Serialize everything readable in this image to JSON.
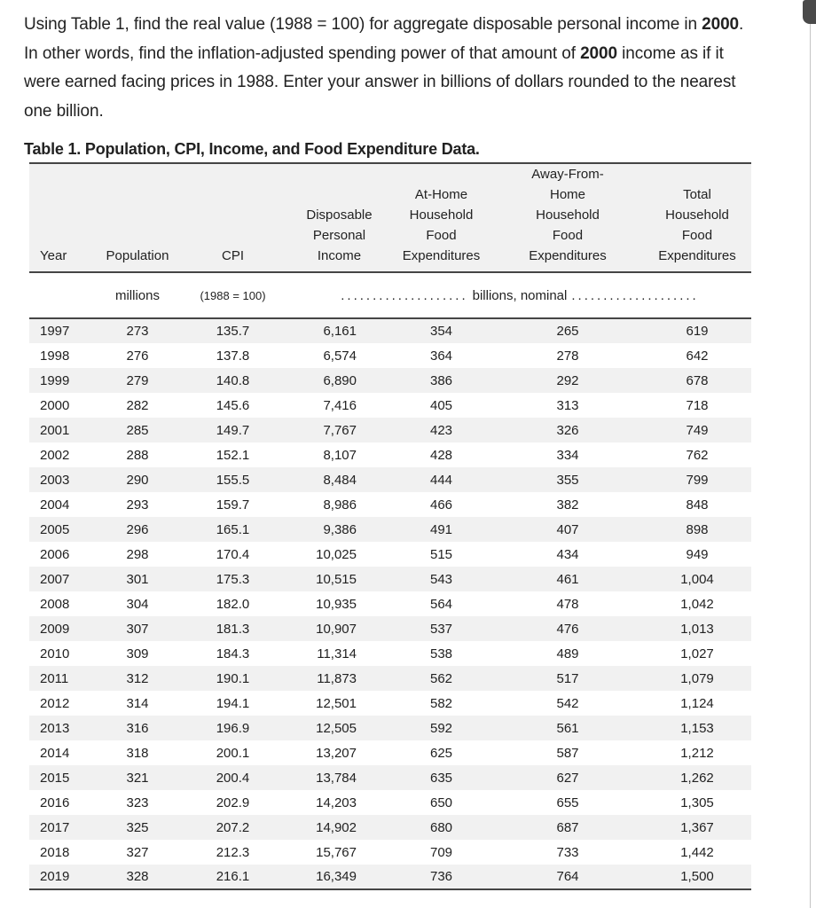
{
  "colors": {
    "stripe": "#f1f1f1",
    "rule": "#454545",
    "text": "#222222",
    "scrollbar_thumb": "#4a4a4a",
    "scrollbar_track_line": "#c5c5c5"
  },
  "question": {
    "lines": [
      [
        {
          "t": "Using Table 1, find the real value (1988 = 100) for aggregate disposable personal income in ",
          "b": false
        },
        {
          "t": "2000",
          "b": true
        },
        {
          "t": ".",
          "b": false
        }
      ],
      [
        {
          "t": "In other words, find the inflation-adjusted spending power of that amount of ",
          "b": false
        },
        {
          "t": "2000",
          "b": true
        },
        {
          "t": " income as if it",
          "b": false
        }
      ],
      [
        {
          "t": "were earned facing prices in 1988. Enter your answer in billions of dollars rounded to the nearest",
          "b": false
        }
      ],
      [
        {
          "t": "one billion.",
          "b": false
        }
      ]
    ]
  },
  "table": {
    "title": "Table 1. Population, CPI, Income, and Food Expenditure Data.",
    "columns": [
      {
        "key": "year",
        "label_lines": [
          "Year"
        ],
        "align": "left"
      },
      {
        "key": "population",
        "label_lines": [
          "Population"
        ],
        "align": "center"
      },
      {
        "key": "cpi",
        "label_lines": [
          "CPI"
        ],
        "align": "center"
      },
      {
        "key": "income",
        "label_lines": [
          "Disposable",
          "Personal",
          "Income"
        ],
        "align": "right"
      },
      {
        "key": "athome",
        "label_lines": [
          "At-Home",
          "Household",
          "Food",
          "Expenditures"
        ],
        "align": "center"
      },
      {
        "key": "away",
        "label_lines": [
          "Away-From-",
          "Home",
          "Household",
          "Food",
          "Expenditures"
        ],
        "align": "center"
      },
      {
        "key": "total",
        "label_lines": [
          "Total",
          "Household",
          "Food",
          "Expenditures"
        ],
        "align": "center"
      }
    ],
    "units": {
      "population": "millions",
      "cpi": "(1988 = 100)",
      "span_left_dots": "....................",
      "span_label": "billions, nominal",
      "span_right_dots": "...................."
    },
    "rows": [
      [
        "1997",
        "273",
        "135.7",
        "6,161",
        "354",
        "265",
        "619"
      ],
      [
        "1998",
        "276",
        "137.8",
        "6,574",
        "364",
        "278",
        "642"
      ],
      [
        "1999",
        "279",
        "140.8",
        "6,890",
        "386",
        "292",
        "678"
      ],
      [
        "2000",
        "282",
        "145.6",
        "7,416",
        "405",
        "313",
        "718"
      ],
      [
        "2001",
        "285",
        "149.7",
        "7,767",
        "423",
        "326",
        "749"
      ],
      [
        "2002",
        "288",
        "152.1",
        "8,107",
        "428",
        "334",
        "762"
      ],
      [
        "2003",
        "290",
        "155.5",
        "8,484",
        "444",
        "355",
        "799"
      ],
      [
        "2004",
        "293",
        "159.7",
        "8,986",
        "466",
        "382",
        "848"
      ],
      [
        "2005",
        "296",
        "165.1",
        "9,386",
        "491",
        "407",
        "898"
      ],
      [
        "2006",
        "298",
        "170.4",
        "10,025",
        "515",
        "434",
        "949"
      ],
      [
        "2007",
        "301",
        "175.3",
        "10,515",
        "543",
        "461",
        "1,004"
      ],
      [
        "2008",
        "304",
        "182.0",
        "10,935",
        "564",
        "478",
        "1,042"
      ],
      [
        "2009",
        "307",
        "181.3",
        "10,907",
        "537",
        "476",
        "1,013"
      ],
      [
        "2010",
        "309",
        "184.3",
        "11,314",
        "538",
        "489",
        "1,027"
      ],
      [
        "2011",
        "312",
        "190.1",
        "11,873",
        "562",
        "517",
        "1,079"
      ],
      [
        "2012",
        "314",
        "194.1",
        "12,501",
        "582",
        "542",
        "1,124"
      ],
      [
        "2013",
        "316",
        "196.9",
        "12,505",
        "592",
        "561",
        "1,153"
      ],
      [
        "2014",
        "318",
        "200.1",
        "13,207",
        "625",
        "587",
        "1,212"
      ],
      [
        "2015",
        "321",
        "200.4",
        "13,784",
        "635",
        "627",
        "1,262"
      ],
      [
        "2016",
        "323",
        "202.9",
        "14,203",
        "650",
        "655",
        "1,305"
      ],
      [
        "2017",
        "325",
        "207.2",
        "14,902",
        "680",
        "687",
        "1,367"
      ],
      [
        "2018",
        "327",
        "212.3",
        "15,767",
        "709",
        "733",
        "1,442"
      ],
      [
        "2019",
        "328",
        "216.1",
        "16,349",
        "736",
        "764",
        "1,500"
      ]
    ]
  }
}
